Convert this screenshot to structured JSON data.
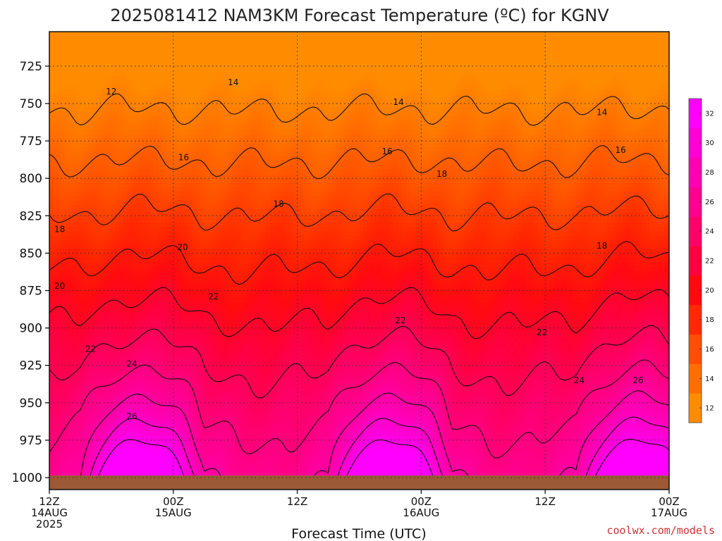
{
  "chart_data": {
    "type": "contour",
    "title": "2025081412 NAM3KM Forecast Temperature (ºC) for KGNV",
    "xlabel": "Forecast Time (UTC)",
    "ylabel": "",
    "credit": "coolwx.com/models",
    "x_ticks": [
      {
        "hour": 0,
        "lines": [
          "12Z",
          "14AUG",
          "2025"
        ]
      },
      {
        "hour": 12,
        "lines": [
          "00Z",
          "15AUG"
        ]
      },
      {
        "hour": 24,
        "lines": [
          "12Z"
        ]
      },
      {
        "hour": 36,
        "lines": [
          "00Z",
          "16AUG"
        ]
      },
      {
        "hour": 48,
        "lines": [
          "12Z"
        ]
      },
      {
        "hour": 60,
        "lines": [
          "00Z",
          "17AUG"
        ]
      }
    ],
    "x_range_hours": [
      0,
      60
    ],
    "y_ticks": [
      725,
      750,
      775,
      800,
      825,
      850,
      875,
      900,
      925,
      950,
      975,
      1000
    ],
    "y_range_hpa": [
      702,
      1008
    ],
    "ground_color": "#9b5a35",
    "colorbar": {
      "levels": [
        12,
        14,
        16,
        18,
        20,
        22,
        24,
        26,
        28,
        30,
        32
      ],
      "colors": [
        "#ff8c00",
        "#ff6f00",
        "#ff4f00",
        "#ff2a00",
        "#ff0a10",
        "#ff0040",
        "#ff006a",
        "#ff0090",
        "#ff00b4",
        "#ff00d8",
        "#ff00ff"
      ]
    },
    "contour_levels": [
      12,
      14,
      16,
      18,
      20,
      22,
      24,
      26,
      28,
      30
    ],
    "contour_labels": [
      {
        "value": "12",
        "hour": 6.0,
        "pressure": 742
      },
      {
        "value": "14",
        "hour": 17.8,
        "pressure": 736
      },
      {
        "value": "14",
        "hour": 33.8,
        "pressure": 749
      },
      {
        "value": "14",
        "hour": 53.5,
        "pressure": 756
      },
      {
        "value": "16",
        "hour": 13.0,
        "pressure": 786
      },
      {
        "value": "16",
        "hour": 32.7,
        "pressure": 782
      },
      {
        "value": "16",
        "hour": 55.3,
        "pressure": 781
      },
      {
        "value": "18",
        "hour": 1.0,
        "pressure": 834
      },
      {
        "value": "18",
        "hour": 22.2,
        "pressure": 817
      },
      {
        "value": "18",
        "hour": 38.0,
        "pressure": 797
      },
      {
        "value": "18",
        "hour": 53.5,
        "pressure": 845
      },
      {
        "value": "20",
        "hour": 1.0,
        "pressure": 872
      },
      {
        "value": "20",
        "hour": 12.9,
        "pressure": 846
      },
      {
        "value": "22",
        "hour": 4.0,
        "pressure": 914
      },
      {
        "value": "22",
        "hour": 15.9,
        "pressure": 879
      },
      {
        "value": "22",
        "hour": 34.0,
        "pressure": 895
      },
      {
        "value": "22",
        "hour": 47.7,
        "pressure": 903
      },
      {
        "value": "24",
        "hour": 8.0,
        "pressure": 924
      },
      {
        "value": "24",
        "hour": 51.3,
        "pressure": 935
      },
      {
        "value": "26",
        "hour": 8.0,
        "pressure": 959
      },
      {
        "value": "26",
        "hour": 57.0,
        "pressure": 935
      }
    ]
  }
}
